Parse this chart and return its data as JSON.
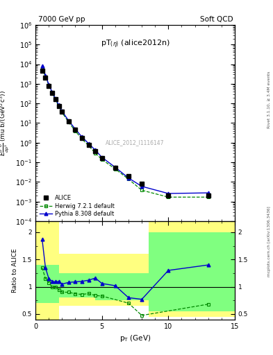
{
  "title_left": "7000 GeV pp",
  "title_right": "Soft QCD",
  "plot_label": "pT(\\u03b7) (alice2012n)",
  "watermark": "ALICE_2012_I1116147",
  "right_label1": "Rivet 3.1.10, ≥ 3.4M events",
  "right_label2": "mcplots.cern.ch [arXiv:1306.3436]",
  "alice_pt": [
    0.5,
    0.75,
    1.0,
    1.25,
    1.5,
    1.75,
    2.0,
    2.5,
    3.0,
    3.5,
    4.0,
    4.5,
    5.0,
    6.0,
    7.0,
    8.0,
    10.0,
    13.0
  ],
  "alice_y": [
    4500,
    2000,
    800,
    350,
    160,
    75,
    38,
    12,
    4.5,
    1.8,
    0.8,
    0.36,
    0.17,
    0.055,
    0.02,
    0.008,
    0.002,
    0.002
  ],
  "herwig_pt": [
    0.5,
    0.75,
    1.0,
    1.25,
    1.5,
    1.75,
    2.0,
    2.5,
    3.0,
    3.5,
    4.0,
    4.5,
    5.0,
    6.0,
    7.0,
    8.0,
    10.0,
    13.0
  ],
  "herwig_y": [
    6000,
    2300,
    860,
    350,
    160,
    71,
    34,
    11,
    3.9,
    1.55,
    0.7,
    0.3,
    0.14,
    0.046,
    0.014,
    0.0038,
    0.0017,
    0.0017
  ],
  "pythia_pt": [
    0.5,
    0.75,
    1.0,
    1.25,
    1.5,
    1.75,
    2.0,
    2.5,
    3.0,
    3.5,
    4.0,
    4.5,
    5.0,
    6.0,
    7.0,
    8.0,
    10.0,
    13.0
  ],
  "pythia_y": [
    8500,
    2700,
    920,
    385,
    175,
    83,
    40,
    13,
    4.9,
    1.97,
    0.9,
    0.42,
    0.18,
    0.056,
    0.016,
    0.006,
    0.0026,
    0.0028
  ],
  "herwig_ratio_pt": [
    0.5,
    0.75,
    1.0,
    1.25,
    1.5,
    1.75,
    2.0,
    2.5,
    3.0,
    3.5,
    4.0,
    4.5,
    5.0,
    7.0,
    8.0,
    13.0
  ],
  "herwig_ratio": [
    1.35,
    1.15,
    1.075,
    1.0,
    1.0,
    0.95,
    0.9,
    0.9,
    0.87,
    0.86,
    0.875,
    0.84,
    0.83,
    0.7,
    0.475,
    0.68
  ],
  "pythia_ratio_pt": [
    0.5,
    0.75,
    1.0,
    1.25,
    1.5,
    1.75,
    2.0,
    2.5,
    3.0,
    3.5,
    4.0,
    4.5,
    5.0,
    6.0,
    7.0,
    8.0,
    10.0,
    13.0
  ],
  "pythia_ratio": [
    1.87,
    1.35,
    1.15,
    1.1,
    1.09,
    1.1,
    1.05,
    1.08,
    1.09,
    1.1,
    1.12,
    1.16,
    1.06,
    1.02,
    0.8,
    0.77,
    1.3,
    1.4
  ],
  "ylim_main": [
    0.0001,
    1000000.0
  ],
  "ylim_ratio": [
    0.4,
    2.2
  ],
  "xlim": [
    0,
    15
  ],
  "color_alice": "#000000",
  "color_herwig": "#008800",
  "color_pythia": "#0000cc",
  "color_yellow": "#ffff80",
  "color_green": "#80ff80",
  "band_yellow_edges": [
    0.0,
    1.75,
    4.5,
    8.5,
    15.0
  ],
  "band_yellow_lo": [
    0.3,
    0.65,
    0.65,
    0.45,
    0.45
  ],
  "band_yellow_hi": [
    2.5,
    1.6,
    1.6,
    2.2,
    2.2
  ],
  "band_green_edges": [
    0.0,
    1.75,
    4.5,
    8.5,
    15.0
  ],
  "band_green_lo": [
    0.7,
    0.8,
    0.75,
    0.55,
    0.55
  ],
  "band_green_hi": [
    1.4,
    1.25,
    1.25,
    2.0,
    2.0
  ]
}
